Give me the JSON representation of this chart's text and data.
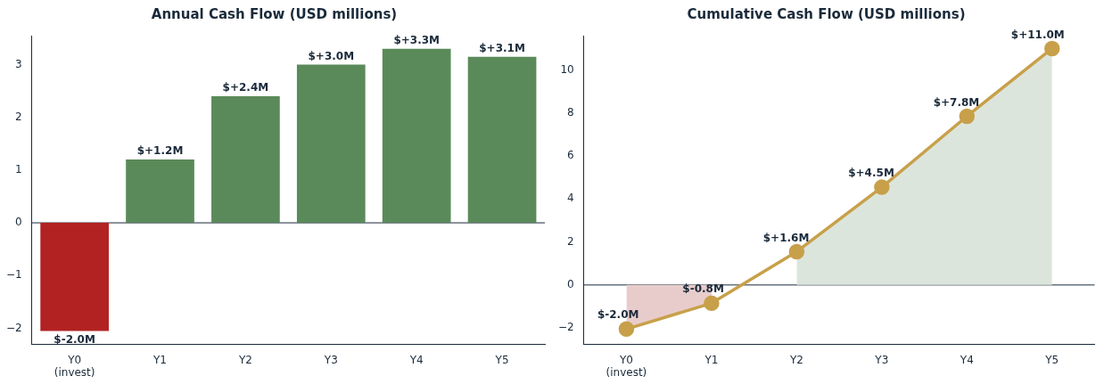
{
  "chart_data": [
    {
      "type": "bar",
      "title": "Annual Cash Flow (USD millions)",
      "categories": [
        "Y0\n(invest)",
        "Y1",
        "Y2",
        "Y3",
        "Y4",
        "Y5"
      ],
      "values": [
        -2.05,
        1.2,
        2.4,
        3.0,
        3.3,
        3.15
      ],
      "colors": [
        "#b22222",
        "#5a8a5a",
        "#5a8a5a",
        "#5a8a5a",
        "#5a8a5a",
        "#5a8a5a"
      ],
      "value_labels": [
        "$-2.0M",
        "$+1.2M",
        "$+2.4M",
        "$+3.0M",
        "$+3.3M",
        "$+3.1M"
      ],
      "ylim": [
        -2.3,
        3.55
      ],
      "yticks": [
        -2,
        -1,
        0,
        1,
        2,
        3
      ],
      "grid": false,
      "legend": false,
      "ref_lines": [
        {
          "axis": "y",
          "value": 0,
          "color": "#1a2a3a"
        }
      ]
    },
    {
      "type": "line",
      "title": "Cumulative Cash Flow (USD millions)",
      "categories": [
        "Y0\n(invest)",
        "Y1",
        "Y2",
        "Y3",
        "Y4",
        "Y5"
      ],
      "series": [
        {
          "type": "area",
          "color": "#e8cccc",
          "values": [
            -2.05,
            -0.85,
            null,
            null,
            null,
            null
          ]
        },
        {
          "type": "area",
          "color": "#dce5dc",
          "values": [
            null,
            null,
            1.55,
            4.55,
            7.85,
            11.0
          ]
        },
        {
          "type": "line",
          "color": "#c8a04a",
          "marker": "circle",
          "values": [
            -2.05,
            -0.85,
            1.55,
            4.55,
            7.85,
            11.0
          ],
          "value_labels": [
            "$-2.0M",
            "$-0.8M",
            "$+1.6M",
            "$+4.5M",
            "$+7.8M",
            "$+11.0M"
          ]
        }
      ],
      "line_style": "solid",
      "ylim": [
        -2.75,
        11.6
      ],
      "yticks": [
        -2,
        0,
        2,
        4,
        6,
        8,
        10
      ],
      "grid": false,
      "legend": false,
      "ref_lines": [
        {
          "axis": "y",
          "value": 0,
          "color": "#1a2a3a"
        }
      ]
    }
  ]
}
